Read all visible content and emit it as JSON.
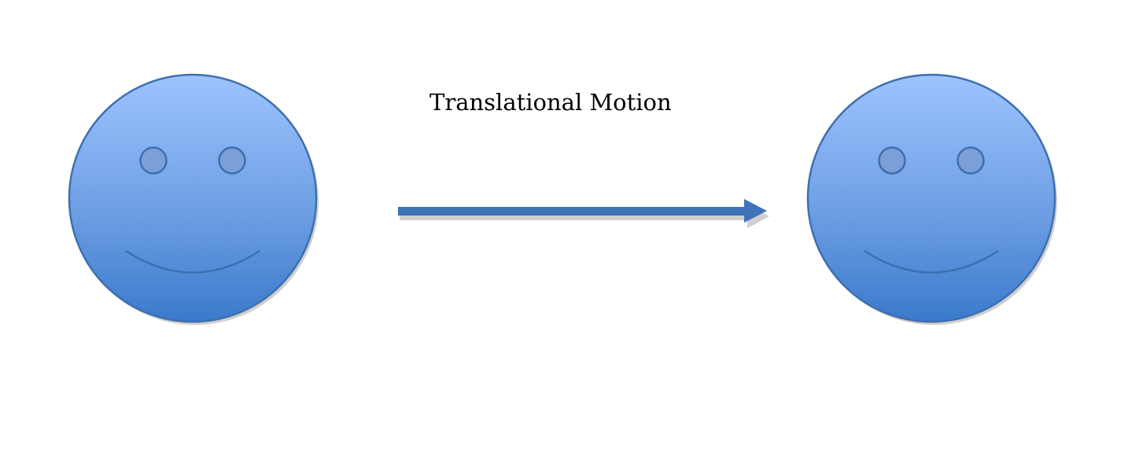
{
  "diagram": {
    "label": "Translational Motion",
    "colors": {
      "face_top": "#9dc3ff",
      "face_bottom": "#3a7acb",
      "face_stroke": "#3f6fae",
      "feature_stroke": "#3d6fb0",
      "arrow": "#3e73b8",
      "shadow": "#c8c8c8"
    },
    "shapes": [
      {
        "name": "left-smiley-face",
        "icon": "smiley-face-icon"
      },
      {
        "name": "motion-arrow",
        "icon": "right-arrow-icon"
      },
      {
        "name": "right-smiley-face",
        "icon": "smiley-face-icon"
      }
    ]
  }
}
